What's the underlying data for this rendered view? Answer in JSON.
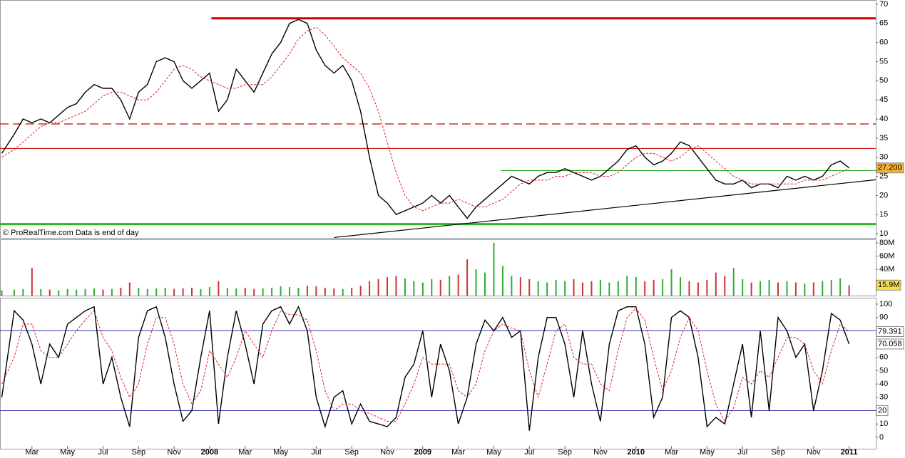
{
  "chart_data": [
    {
      "type": "line",
      "annotation": "© ProRealTime.com  Data is end of day",
      "x": [
        0.3,
        1,
        1.5,
        2,
        2.5,
        3,
        3.5,
        4,
        4.5,
        5,
        5.5,
        6,
        6.5,
        7,
        7.5,
        8,
        8.5,
        9,
        9.5,
        10,
        10.5,
        11,
        11.5,
        12,
        12.5,
        13,
        13.5,
        14,
        14.5,
        15,
        15.5,
        16,
        16.5,
        17,
        17.5,
        18,
        18.5,
        19,
        19.5,
        20,
        20.5,
        21,
        21.5,
        22,
        22.5,
        23,
        23.5,
        24,
        24.5,
        25,
        25.5,
        26,
        26.5,
        27,
        27.5,
        28,
        28.5,
        29,
        29.5,
        30,
        30.5,
        31,
        31.5,
        32,
        32.5,
        33,
        33.5,
        34,
        34.5,
        35,
        35.5,
        36,
        36.5,
        37,
        37.5,
        38,
        38.5,
        39,
        39.5,
        40,
        40.5,
        41,
        41.5,
        42,
        42.5,
        43,
        43.5,
        44,
        44.5,
        45,
        45.5,
        46,
        46.5,
        47,
        47.5,
        48
      ],
      "xlim": [
        0.2,
        49.5
      ],
      "xticks": [
        {
          "value": 2,
          "label": "Mar"
        },
        {
          "value": 4,
          "label": "May"
        },
        {
          "value": 6,
          "label": "Jul"
        },
        {
          "value": 8,
          "label": "Sep"
        },
        {
          "value": 10,
          "label": "Nov"
        },
        {
          "value": 12,
          "label": "2008"
        },
        {
          "value": 14,
          "label": "Mar"
        },
        {
          "value": 16,
          "label": "May"
        },
        {
          "value": 18,
          "label": "Jul"
        },
        {
          "value": 20,
          "label": "Sep"
        },
        {
          "value": 22,
          "label": "Nov"
        },
        {
          "value": 24,
          "label": "2009"
        },
        {
          "value": 26,
          "label": "Mar"
        },
        {
          "value": 28,
          "label": "May"
        },
        {
          "value": 30,
          "label": "Jul"
        },
        {
          "value": 32,
          "label": "Sep"
        },
        {
          "value": 34,
          "label": "Nov"
        },
        {
          "value": 36,
          "label": "2010"
        },
        {
          "value": 38,
          "label": "Mar"
        },
        {
          "value": 40,
          "label": "May"
        },
        {
          "value": 42,
          "label": "Jul"
        },
        {
          "value": 44,
          "label": "Sep"
        },
        {
          "value": 46,
          "label": "Nov"
        },
        {
          "value": 48,
          "label": "2011"
        }
      ],
      "ylim": [
        8.9,
        71.1
      ],
      "yticks": [
        10,
        15,
        20,
        25,
        30,
        35,
        40,
        45,
        50,
        55,
        60,
        65,
        70
      ],
      "series": [
        {
          "color": "#000000",
          "values": [
            31,
            36,
            40,
            39,
            40,
            39,
            41,
            43,
            44,
            47,
            49,
            48,
            48,
            45,
            40,
            47,
            49,
            55,
            56,
            55,
            50,
            48,
            50,
            52,
            42,
            45,
            53,
            50,
            47,
            52,
            57,
            60,
            65,
            66,
            65,
            58,
            54,
            52,
            54,
            50,
            42,
            30,
            20,
            18,
            15,
            16,
            17,
            18,
            20,
            18,
            20,
            17,
            14,
            17,
            19,
            21,
            23,
            25,
            24,
            23,
            25,
            26,
            26,
            27,
            26,
            25,
            24,
            25,
            27,
            29,
            32,
            33,
            30,
            28,
            29,
            31,
            34,
            33,
            30,
            27,
            24,
            23,
            23,
            24,
            22,
            23,
            23,
            22,
            25,
            24,
            25,
            24,
            25,
            28,
            29,
            27.2
          ]
        },
        {
          "color": "#dd2222",
          "dash": true,
          "values": [
            30,
            32,
            34,
            36,
            38,
            39,
            39,
            40,
            41,
            42,
            44,
            46,
            47,
            47,
            46,
            45,
            45,
            47,
            50,
            53,
            54,
            53,
            51,
            50,
            49,
            48,
            48,
            49,
            49,
            49,
            51,
            54,
            57,
            61,
            63,
            64,
            62,
            59,
            56,
            54,
            52,
            48,
            42,
            34,
            26,
            20,
            17,
            16,
            17,
            18,
            18,
            19,
            18,
            17,
            17,
            18,
            19,
            21,
            23,
            24,
            24,
            24,
            25,
            25,
            26,
            26,
            26,
            25,
            25,
            26,
            28,
            30,
            31,
            31,
            30,
            29,
            30,
            32,
            33,
            31,
            29,
            27,
            25,
            24,
            23,
            23,
            23,
            23,
            23,
            23,
            24,
            24,
            24,
            25,
            26,
            27
          ]
        }
      ],
      "last_label": "27.200",
      "levels": [
        {
          "value": 66.3,
          "color": "#cc0000",
          "width": 3,
          "start": 12.1
        },
        {
          "value": 38.7,
          "color": "#cc0000",
          "width": 1.2,
          "dash": true
        },
        {
          "value": 32.3,
          "color": "#cc0000",
          "width": 1
        },
        {
          "value": 26.5,
          "color": "#22aa22",
          "width": 1,
          "start": 28.4
        },
        {
          "value": 12.5,
          "color": "#22bb22",
          "width": 3
        }
      ],
      "trendline": {
        "x": [
          19,
          49.5
        ],
        "y": [
          9,
          24.1
        ],
        "color": "#000000"
      }
    },
    {
      "type": "bar",
      "ylim": [
        0,
        85.4
      ],
      "yticks": [
        {
          "value": 40,
          "label": "40M"
        },
        {
          "value": 60,
          "label": "60M"
        },
        {
          "value": 80,
          "label": "80M"
        }
      ],
      "up_color": "#33aa33",
      "down_color": "#cc3333",
      "values": [
        8,
        9,
        10,
        42,
        10,
        9,
        8,
        10,
        9,
        10,
        11,
        9,
        10,
        12,
        20,
        12,
        10,
        11,
        12,
        10,
        11,
        12,
        10,
        13,
        22,
        12,
        11,
        12,
        10,
        11,
        12,
        14,
        13,
        12,
        15,
        14,
        12,
        11,
        10,
        12,
        15,
        22,
        25,
        28,
        30,
        26,
        22,
        20,
        25,
        24,
        30,
        32,
        55,
        40,
        35,
        80,
        45,
        30,
        28,
        25,
        22,
        20,
        24,
        22,
        25,
        20,
        22,
        24,
        20,
        22,
        30,
        28,
        22,
        24,
        25,
        40,
        28,
        22,
        20,
        24,
        35,
        30,
        42,
        25,
        20,
        22,
        24,
        20,
        22,
        20,
        18,
        20,
        22,
        24,
        26,
        15.9
      ],
      "last_label": "15.9M"
    },
    {
      "type": "line",
      "ylim": [
        -8.6,
        104.8
      ],
      "yticks": [
        0,
        10,
        20,
        30,
        40,
        50,
        60,
        70,
        80,
        90,
        100
      ],
      "series": [
        {
          "color": "#000000",
          "values": [
            30,
            95,
            88,
            70,
            40,
            70,
            60,
            85,
            90,
            95,
            98,
            40,
            60,
            30,
            8,
            75,
            95,
            98,
            75,
            40,
            12,
            20,
            60,
            95,
            10,
            60,
            95,
            70,
            40,
            85,
            95,
            98,
            85,
            98,
            80,
            30,
            8,
            30,
            35,
            10,
            25,
            12,
            10,
            8,
            15,
            45,
            55,
            80,
            30,
            70,
            50,
            10,
            30,
            70,
            88,
            80,
            90,
            75,
            80,
            5,
            60,
            90,
            90,
            70,
            30,
            80,
            40,
            12,
            70,
            95,
            98,
            98,
            70,
            15,
            30,
            90,
            95,
            90,
            60,
            8,
            15,
            10,
            40,
            70,
            15,
            80,
            20,
            90,
            80,
            60,
            70,
            20,
            50,
            93,
            88,
            70.058
          ]
        },
        {
          "color": "#dd2222",
          "dash": true,
          "values": [
            40,
            60,
            85,
            85,
            65,
            60,
            60,
            70,
            80,
            88,
            95,
            75,
            65,
            45,
            30,
            40,
            70,
            90,
            90,
            70,
            40,
            25,
            35,
            65,
            55,
            45,
            60,
            80,
            70,
            60,
            80,
            95,
            92,
            92,
            88,
            65,
            35,
            20,
            25,
            25,
            20,
            18,
            15,
            12,
            12,
            25,
            40,
            60,
            55,
            55,
            55,
            35,
            30,
            40,
            65,
            80,
            85,
            82,
            80,
            50,
            30,
            55,
            80,
            85,
            60,
            55,
            55,
            40,
            35,
            65,
            90,
            97,
            88,
            60,
            35,
            50,
            75,
            90,
            80,
            50,
            25,
            12,
            22,
            45,
            40,
            50,
            45,
            60,
            75,
            75,
            70,
            50,
            40,
            65,
            85,
            79.391
          ]
        }
      ],
      "levels": [
        {
          "value": 80,
          "color": "#3333aa",
          "width": 1
        },
        {
          "value": 20,
          "color": "#3333aa",
          "width": 1
        }
      ]
    }
  ]
}
